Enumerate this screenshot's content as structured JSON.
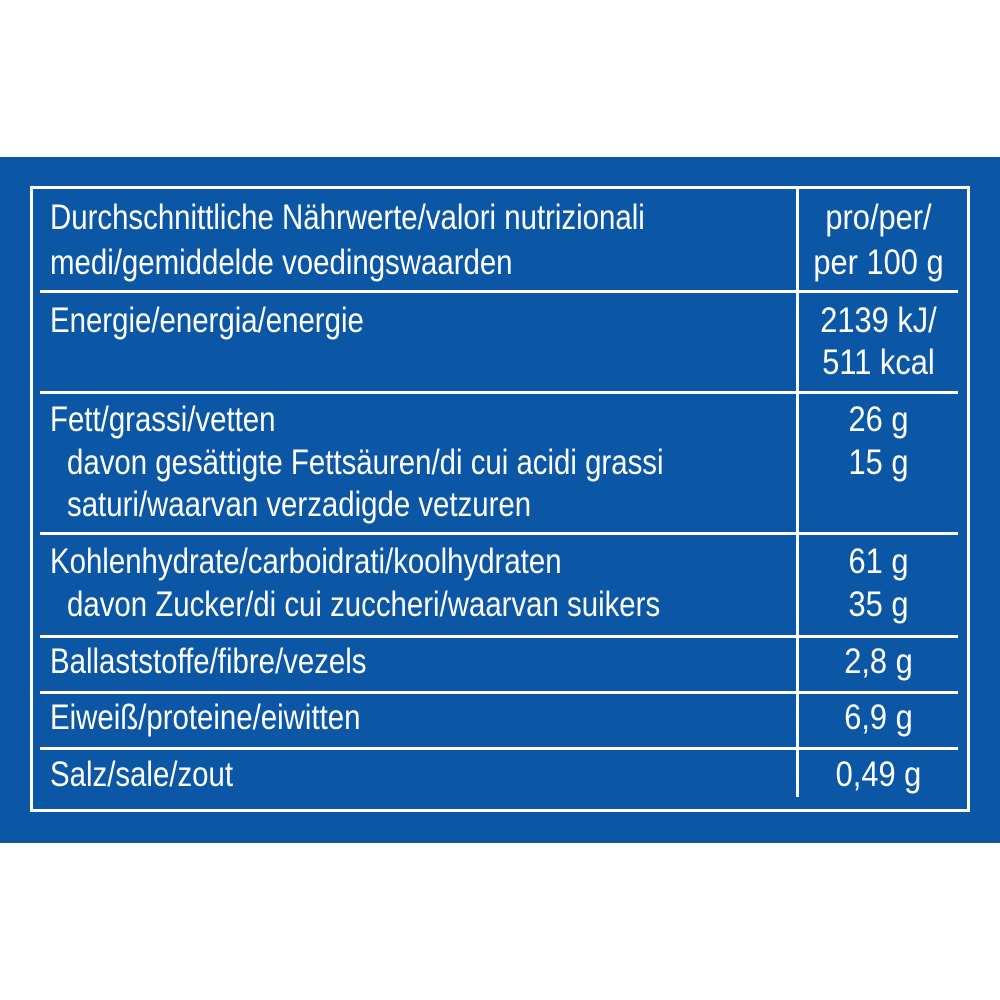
{
  "table": {
    "header": {
      "label_lines": [
        "Durchschnittliche Nährwerte/valori nutrizionali",
        "medi/gemiddelde voedingswaarden"
      ],
      "unit_lines": [
        "pro/per/",
        "per 100 g"
      ]
    },
    "rows": [
      {
        "label_lines": [
          "Energie/energia/energie"
        ],
        "value_lines": [
          "2139 kJ/",
          "511 kcal"
        ]
      },
      {
        "label_lines": [
          "Fett/grassi/vetten",
          "davon gesättigte Fettsäuren/di cui acidi grassi",
          "saturi/waarvan verzadigde vetzuren"
        ],
        "value_lines": [
          "26 g",
          "15 g"
        ]
      },
      {
        "label_lines": [
          "Kohlenhydrate/carboidrati/koolhydraten",
          "davon Zucker/di cui zuccheri/waarvan suikers"
        ],
        "value_lines": [
          "61 g",
          "35 g"
        ]
      },
      {
        "label_lines": [
          "Ballaststoffe/fibre/vezels"
        ],
        "value_lines": [
          "2,8 g"
        ]
      },
      {
        "label_lines": [
          "Eiweiß/proteine/eiwitten"
        ],
        "value_lines": [
          "6,9 g"
        ]
      },
      {
        "label_lines": [
          "Salz/sale/zout"
        ],
        "value_lines": [
          "0,49 g"
        ]
      }
    ]
  },
  "colors": {
    "background": "#0b57a6",
    "text": "#ffffff"
  }
}
